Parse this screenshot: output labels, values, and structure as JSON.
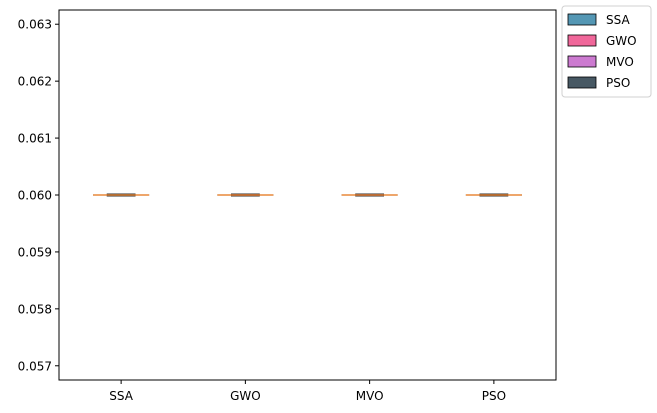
{
  "chart_data": {
    "type": "box",
    "categories": [
      "SSA",
      "GWO",
      "MVO",
      "PSO"
    ],
    "series": [
      {
        "name": "SSA",
        "color": "#5497b4",
        "min": 0.06,
        "q1": 0.06,
        "median": 0.06,
        "q3": 0.06,
        "max": 0.06
      },
      {
        "name": "GWO",
        "color": "#f0679a",
        "min": 0.06,
        "q1": 0.06,
        "median": 0.06,
        "q3": 0.06,
        "max": 0.06
      },
      {
        "name": "MVO",
        "color": "#cc7ad0",
        "min": 0.06,
        "q1": 0.06,
        "median": 0.06,
        "q3": 0.06,
        "max": 0.06
      },
      {
        "name": "PSO",
        "color": "#475863",
        "min": 0.06,
        "q1": 0.06,
        "median": 0.06,
        "q3": 0.06,
        "max": 0.06
      }
    ],
    "median_color": "#e8883a",
    "ylim": [
      0.05675,
      0.06325
    ],
    "yticks": [
      "0.057",
      "0.058",
      "0.059",
      "0.060",
      "0.061",
      "0.062",
      "0.063"
    ],
    "ytick_values": [
      0.057,
      0.058,
      0.059,
      0.06,
      0.061,
      0.062,
      0.063
    ],
    "grid": false,
    "legend_position": "outside-top-right",
    "title": "",
    "xlabel": "",
    "ylabel": ""
  }
}
